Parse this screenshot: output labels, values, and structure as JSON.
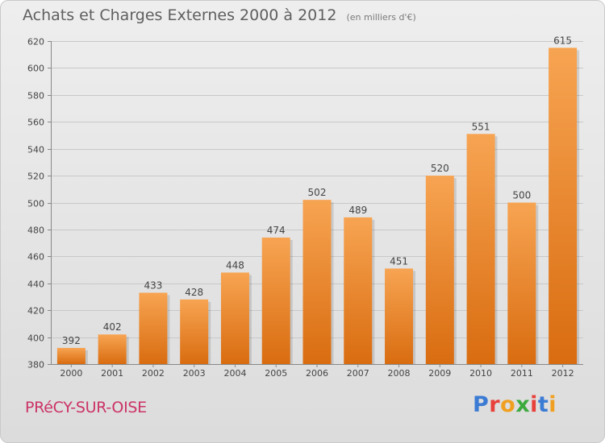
{
  "title": "Achats et Charges Externes 2000 à 2012",
  "unit": "(en milliers d'€)",
  "city": "PRéCY-SUR-OISE",
  "brand": {
    "letters": [
      {
        "ch": "P",
        "color": "#3b7bd4"
      },
      {
        "ch": "r",
        "color": "#e8403a"
      },
      {
        "ch": "o",
        "color": "#f0a020"
      },
      {
        "ch": "x",
        "color": "#3daa3d"
      },
      {
        "ch": "i",
        "color": "#e8403a"
      },
      {
        "ch": "t",
        "color": "#3b7bd4"
      },
      {
        "ch": "i",
        "color": "#f0a020"
      }
    ]
  },
  "chart_data": {
    "type": "bar",
    "categories": [
      "2000",
      "2001",
      "2002",
      "2003",
      "2004",
      "2005",
      "2006",
      "2007",
      "2008",
      "2009",
      "2010",
      "2011",
      "2012"
    ],
    "values": [
      392,
      402,
      433,
      428,
      448,
      474,
      502,
      489,
      451,
      520,
      551,
      500,
      615
    ],
    "yticks": [
      380,
      400,
      420,
      440,
      460,
      480,
      500,
      520,
      540,
      560,
      580,
      600,
      620
    ],
    "ylim": [
      380,
      620
    ],
    "grid": true,
    "bar_color_top": "#f7a452",
    "bar_color_bottom": "#d96c10",
    "data_labels": true
  }
}
